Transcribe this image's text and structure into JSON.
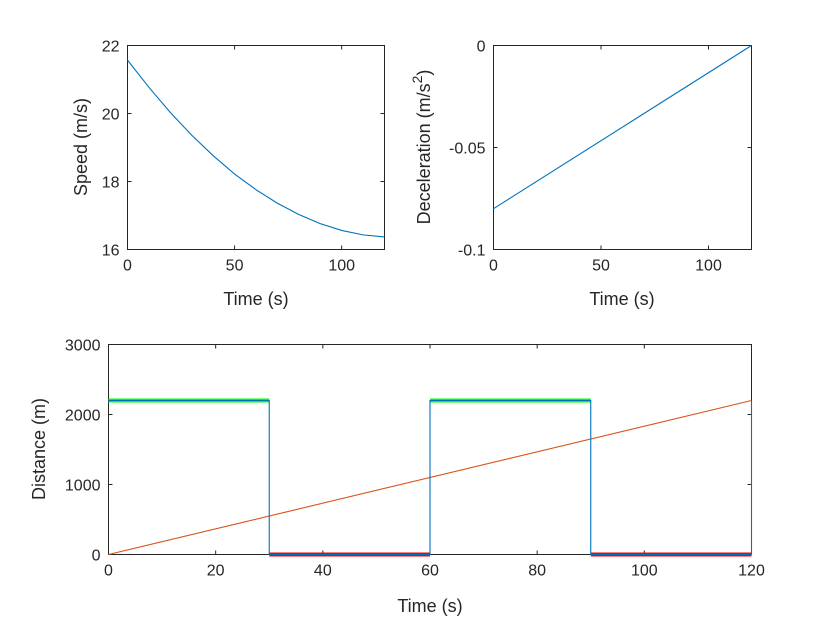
{
  "chart_data": [
    {
      "type": "line",
      "xlabel": "Time (s)",
      "ylabel": "Speed (m/s)",
      "xlim": [
        0,
        120
      ],
      "ylim": [
        16,
        22
      ],
      "xticks": [
        0,
        50,
        100
      ],
      "yticks": [
        16,
        18,
        20,
        22
      ],
      "xtick_labels": [
        "0",
        "50",
        "100"
      ],
      "ytick_labels": [
        "16",
        "18",
        "20",
        "22"
      ],
      "grid": false,
      "series": [
        {
          "name": "speed",
          "color": "#0072BD",
          "x": [
            0,
            10,
            20,
            30,
            40,
            50,
            60,
            70,
            80,
            90,
            100,
            110,
            120
          ],
          "y": [
            21.57,
            20.77,
            20.03,
            19.36,
            18.76,
            18.22,
            17.76,
            17.36,
            17.03,
            16.76,
            16.56,
            16.43,
            16.37
          ]
        }
      ]
    },
    {
      "type": "line",
      "xlabel": "Time (s)",
      "ylabel": "Deceleration (m/s",
      "ylabel_superscript": "2",
      "ylabel_close": ")",
      "xlim": [
        0,
        120
      ],
      "ylim": [
        -0.1,
        0
      ],
      "xticks": [
        0,
        50,
        100
      ],
      "yticks": [
        -0.1,
        -0.05,
        0
      ],
      "xtick_labels": [
        "0",
        "50",
        "100"
      ],
      "ytick_labels": [
        "-0.1",
        "-0.05",
        "0"
      ],
      "grid": false,
      "series": [
        {
          "name": "deceleration",
          "color": "#0072BD",
          "x": [
            0,
            120
          ],
          "y": [
            -0.08,
            0
          ]
        }
      ]
    },
    {
      "type": "line",
      "xlabel": "Time (s)",
      "ylabel": "Distance (m)",
      "xlim": [
        0,
        120
      ],
      "ylim": [
        0,
        3000
      ],
      "xticks": [
        0,
        20,
        40,
        60,
        80,
        100,
        120
      ],
      "yticks": [
        0,
        1000,
        2000,
        3000
      ],
      "xtick_labels": [
        "0",
        "20",
        "40",
        "60",
        "80",
        "100",
        "120"
      ],
      "ytick_labels": [
        "0",
        "1000",
        "2000",
        "3000"
      ],
      "grid": false,
      "series": [
        {
          "name": "distance",
          "color": "#D95319",
          "x": [
            0,
            120
          ],
          "y": [
            0,
            2200
          ]
        },
        {
          "name": "signal",
          "color": "#0072BD",
          "x": [
            0,
            30,
            30,
            60,
            60,
            90,
            90,
            120,
            120
          ],
          "y": [
            2200,
            2200,
            0,
            0,
            2200,
            2200,
            0,
            0,
            2200
          ]
        }
      ],
      "segments": [
        {
          "name": "green-1",
          "color": "#00ff00",
          "x": [
            0,
            30
          ],
          "y": 2200
        },
        {
          "name": "red-1",
          "color": "#ff0000",
          "x": [
            30,
            60
          ],
          "y": 0
        },
        {
          "name": "green-2",
          "color": "#00ff00",
          "x": [
            60,
            90
          ],
          "y": 2200
        },
        {
          "name": "red-2",
          "color": "#ff0000",
          "x": [
            90,
            120
          ],
          "y": 0
        }
      ]
    }
  ]
}
